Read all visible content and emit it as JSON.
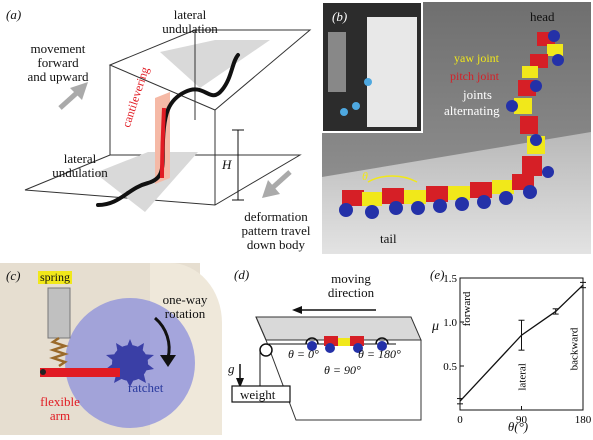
{
  "panel_a": {
    "label": "(a)",
    "movement": [
      "movement",
      "forward",
      "and upward"
    ],
    "lateral_top": [
      "lateral",
      "undulation"
    ],
    "lateral_bottom": [
      "lateral",
      "undulation"
    ],
    "cantilevering": "cantilevering",
    "height_symbol": "H",
    "deformation": [
      "deformation",
      "pattern travel",
      "down body"
    ]
  },
  "panel_b": {
    "label": "(b)",
    "head": "head",
    "yaw_joint": "yaw joint",
    "pitch_joint": "pitch joint",
    "joints": "joints",
    "alternating": "alternating",
    "tail": "tail",
    "theta": "θ"
  },
  "panel_c": {
    "label": "(c)",
    "spring": "spring",
    "one_way": "one-way",
    "rotation": "rotation",
    "flexible": "flexible",
    "arm": "arm",
    "ratchet": "ratchet"
  },
  "panel_d": {
    "label": "(d)",
    "moving": "moving",
    "direction": "direction",
    "theta0": "θ = 0°",
    "theta180": "θ = 180°",
    "theta90": "θ = 90°",
    "g": "g",
    "weight": "weight"
  },
  "panel_e": {
    "label": "(e)",
    "ylabel": "μ",
    "xlabel": "θ(°)",
    "forward": "forward",
    "lateral": "lateral",
    "backward": "backward"
  },
  "chart_data": {
    "type": "line",
    "xlabel": "θ(°)",
    "ylabel": "μ",
    "x_ticks": [
      0,
      90,
      180
    ],
    "y_ticks": [
      0.5,
      1.0,
      1.5
    ],
    "xlim": [
      0,
      180
    ],
    "ylim": [
      0,
      1.5
    ],
    "series": [
      {
        "x": [
          0,
          90,
          140,
          180
        ],
        "y": [
          0.1,
          0.85,
          1.12,
          1.42
        ],
        "err": [
          0.03,
          0.17,
          0.03,
          0.03
        ]
      }
    ],
    "annotations": [
      "forward",
      "lateral",
      "backward"
    ]
  },
  "colors": {
    "red_segment": "#d61f26",
    "yellow_segment": "#f1e81a",
    "blue_wheel": "#2431a8",
    "ratchet_disc": "#8b8fdc",
    "plane_shade": "#d9d9d9",
    "cantilever_band": "#f5b9a6"
  }
}
